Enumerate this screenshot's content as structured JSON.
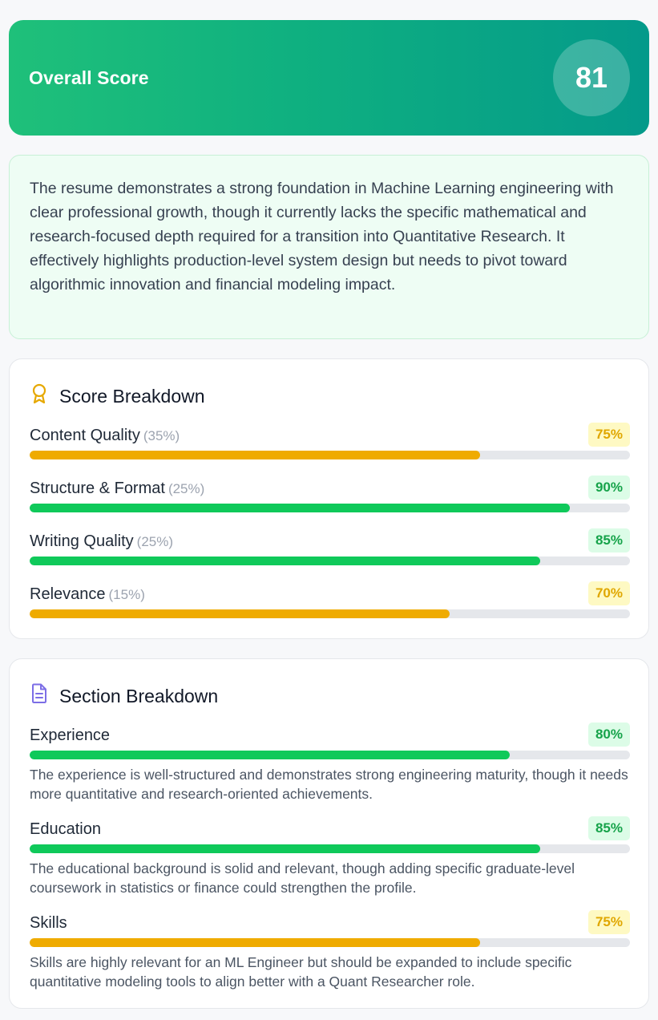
{
  "overall": {
    "title": "Overall Score",
    "score": "81"
  },
  "summary": "The resume demonstrates a strong foundation in Machine Learning engineering with clear professional growth, though it currently lacks the specific mathematical and research-focused depth required for a transition into Quantitative Research. It effectively highlights production-level system design but needs to pivot toward algorithmic innovation and financial modeling impact.",
  "score_breakdown": {
    "title": "Score Breakdown",
    "icon": "award-icon",
    "items": [
      {
        "label": "Content Quality",
        "weight": "(35%)",
        "value": "75%",
        "fraction": 0.75,
        "status": "yellow"
      },
      {
        "label": "Structure & Format",
        "weight": "(25%)",
        "value": "90%",
        "fraction": 0.9,
        "status": "green"
      },
      {
        "label": "Writing Quality",
        "weight": "(25%)",
        "value": "85%",
        "fraction": 0.85,
        "status": "green"
      },
      {
        "label": "Relevance",
        "weight": "(15%)",
        "value": "70%",
        "fraction": 0.7,
        "status": "yellow"
      }
    ]
  },
  "section_breakdown": {
    "title": "Section Breakdown",
    "icon": "document-icon",
    "items": [
      {
        "label": "Experience",
        "value": "80%",
        "fraction": 0.8,
        "status": "green",
        "description": "The experience is well-structured and demonstrates strong engineering maturity, though it needs more quantitative and research-oriented achievements."
      },
      {
        "label": "Education",
        "value": "85%",
        "fraction": 0.85,
        "status": "green",
        "description": "The educational background is solid and relevant, though adding specific graduate-level coursework in statistics or finance could strengthen the profile."
      },
      {
        "label": "Skills",
        "value": "75%",
        "fraction": 0.75,
        "status": "yellow",
        "description": "Skills are highly relevant for an ML Engineer but should be expanded to include specific quantitative modeling tools to align better with a Quant Researcher role."
      }
    ]
  },
  "colors": {
    "green": "#0fc95a",
    "yellow": "#efab00",
    "award_icon": "#e6a800",
    "document_icon": "#7c6ee6"
  }
}
